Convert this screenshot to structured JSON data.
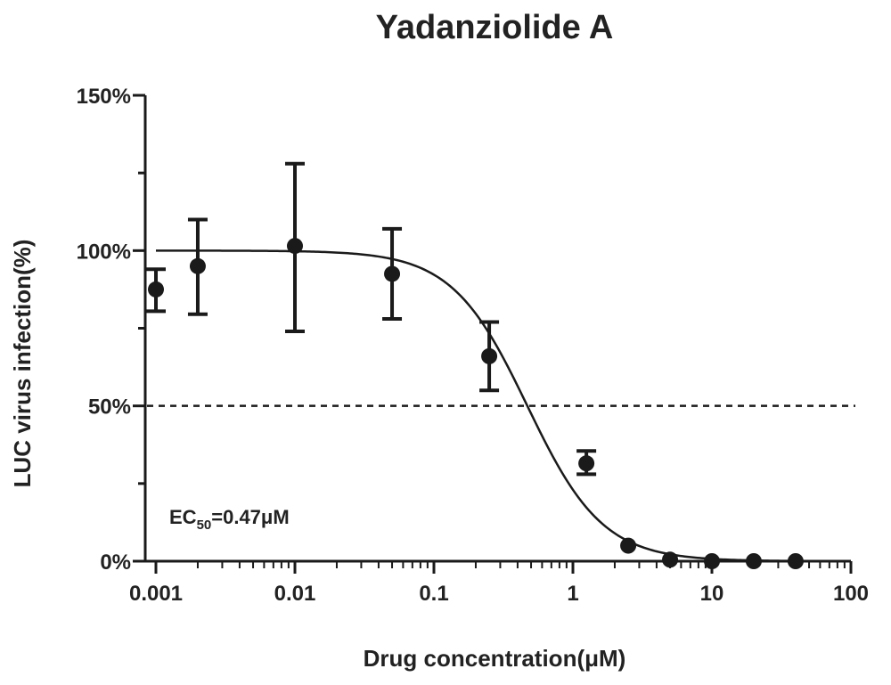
{
  "chart_data": {
    "type": "scatter",
    "title": "Yadanziolide A",
    "xlabel": "Drug concentration(μM)",
    "ylabel": "LUC virus  infection(%)",
    "x_scale": "log",
    "xlim": [
      0.001,
      100
    ],
    "ylim": [
      0,
      150
    ],
    "x_ticks": [
      0.001,
      0.01,
      0.1,
      1,
      10,
      100
    ],
    "x_tick_labels": [
      "0.001",
      "0.01",
      "0.1",
      "1",
      "10",
      "100"
    ],
    "y_ticks": [
      0,
      50,
      100,
      150
    ],
    "y_tick_labels": [
      "0%",
      "50%",
      "100%",
      "150%"
    ],
    "grid": false,
    "reference_line": {
      "y": 50,
      "style": "dashed"
    },
    "series": [
      {
        "points": [
          {
            "x": 0.001,
            "y": 87.5,
            "err_low": 80.5,
            "err_high": 94
          },
          {
            "x": 0.002,
            "y": 95,
            "err_low": 79.5,
            "err_high": 110
          },
          {
            "x": 0.01,
            "y": 101.5,
            "err_low": 74,
            "err_high": 128
          },
          {
            "x": 0.05,
            "y": 92.5,
            "err_low": 78,
            "err_high": 107
          },
          {
            "x": 0.25,
            "y": 66,
            "err_low": 55,
            "err_high": 77
          },
          {
            "x": 1.25,
            "y": 31.5,
            "err_low": 28,
            "err_high": 35.5
          },
          {
            "x": 2.5,
            "y": 5,
            "err_low": 5,
            "err_high": 5
          },
          {
            "x": 5,
            "y": 0.5,
            "err_low": 0.5,
            "err_high": 0.5
          },
          {
            "x": 10,
            "y": 0,
            "err_low": 0,
            "err_high": 0
          },
          {
            "x": 20,
            "y": 0,
            "err_low": 0,
            "err_high": 0
          },
          {
            "x": 40,
            "y": 0,
            "err_low": 0,
            "err_high": 0
          }
        ]
      }
    ],
    "fit": {
      "top": 100,
      "bottom": 0,
      "ec50": 0.47,
      "hill": 1.6
    },
    "annotation": {
      "prefix": "EC",
      "subscript": "50",
      "suffix": "=0.47μM"
    }
  }
}
